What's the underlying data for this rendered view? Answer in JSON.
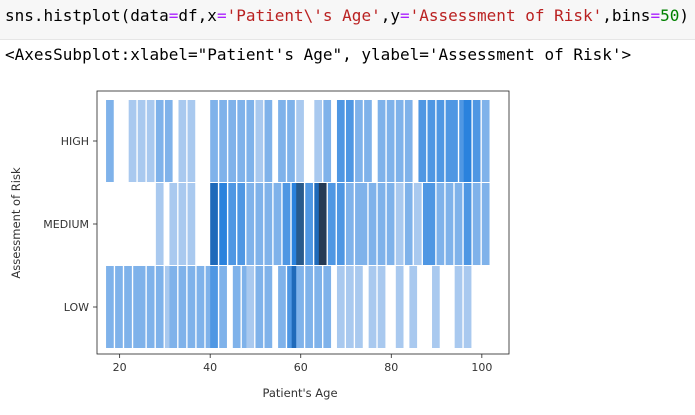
{
  "code_cell": {
    "parts": [
      {
        "text": "sns.histplot(data",
        "kind": "plain"
      },
      {
        "text": "=",
        "kind": "eq"
      },
      {
        "text": "df,x",
        "kind": "plain"
      },
      {
        "text": "=",
        "kind": "eq"
      },
      {
        "text": "'Patient\\'s Age'",
        "kind": "str"
      },
      {
        "text": ",y",
        "kind": "plain"
      },
      {
        "text": "=",
        "kind": "eq"
      },
      {
        "text": "'Assessment of Risk'",
        "kind": "str"
      },
      {
        "text": ",bins",
        "kind": "plain"
      },
      {
        "text": "=",
        "kind": "eq"
      },
      {
        "text": "50",
        "kind": "num"
      },
      {
        "text": ")",
        "kind": "plain"
      }
    ]
  },
  "output": {
    "text": "<AxesSubplot:xlabel=\"Patient's Age\", ylabel='Assessment of Risk'>"
  },
  "chart_data": {
    "type": "heatmap",
    "xlabel": "Patient's Age",
    "ylabel": "Assessment of Risk",
    "xticks": [
      20,
      40,
      60,
      80,
      100
    ],
    "xlim": [
      15,
      106
    ],
    "categories": [
      "HIGH",
      "MEDIUM",
      "LOW"
    ],
    "bin_width": 1.7,
    "color": "#1f77b4",
    "series": [
      {
        "category": "HIGH",
        "cells": [
          [
            17,
            2
          ],
          [
            22,
            1
          ],
          [
            24,
            1
          ],
          [
            26,
            1
          ],
          [
            28,
            2
          ],
          [
            30,
            2
          ],
          [
            33,
            1
          ],
          [
            35,
            1
          ],
          [
            40,
            2
          ],
          [
            42,
            2
          ],
          [
            44,
            2
          ],
          [
            46,
            2
          ],
          [
            48,
            2
          ],
          [
            50,
            1
          ],
          [
            52,
            2
          ],
          [
            55,
            2
          ],
          [
            57,
            2
          ],
          [
            59,
            1
          ],
          [
            63,
            1
          ],
          [
            65,
            2
          ],
          [
            68,
            3
          ],
          [
            70,
            3
          ],
          [
            72,
            2
          ],
          [
            74,
            2
          ],
          [
            77,
            2
          ],
          [
            79,
            2
          ],
          [
            81,
            2
          ],
          [
            83,
            2
          ],
          [
            86,
            3
          ],
          [
            88,
            3
          ],
          [
            90,
            3
          ],
          [
            92,
            3
          ],
          [
            93,
            3
          ],
          [
            95,
            3
          ],
          [
            96,
            4
          ],
          [
            98,
            3
          ],
          [
            100,
            2
          ]
        ]
      },
      {
        "category": "MEDIUM",
        "cells": [
          [
            28,
            1
          ],
          [
            31,
            1
          ],
          [
            33,
            1
          ],
          [
            35,
            1
          ],
          [
            40,
            5
          ],
          [
            42,
            4
          ],
          [
            44,
            3
          ],
          [
            46,
            3
          ],
          [
            48,
            2
          ],
          [
            50,
            2
          ],
          [
            52,
            2
          ],
          [
            54,
            2
          ],
          [
            56,
            3
          ],
          [
            58,
            4
          ],
          [
            59,
            6
          ],
          [
            61,
            3
          ],
          [
            63,
            5
          ],
          [
            64,
            7
          ],
          [
            66,
            3
          ],
          [
            68,
            3
          ],
          [
            70,
            2
          ],
          [
            72,
            2
          ],
          [
            73,
            2
          ],
          [
            75,
            2
          ],
          [
            77,
            2
          ],
          [
            79,
            2
          ],
          [
            81,
            1
          ],
          [
            83,
            2
          ],
          [
            85,
            1
          ],
          [
            87,
            3
          ],
          [
            88,
            3
          ],
          [
            90,
            2
          ],
          [
            92,
            2
          ],
          [
            94,
            2
          ],
          [
            96,
            3
          ],
          [
            98,
            2
          ],
          [
            100,
            2
          ]
        ]
      },
      {
        "category": "LOW",
        "cells": [
          [
            17,
            2
          ],
          [
            19,
            2
          ],
          [
            21,
            2
          ],
          [
            23,
            2
          ],
          [
            24,
            2
          ],
          [
            26,
            2
          ],
          [
            28,
            2
          ],
          [
            30,
            1
          ],
          [
            31,
            2
          ],
          [
            33,
            2
          ],
          [
            35,
            2
          ],
          [
            37,
            2
          ],
          [
            39,
            2
          ],
          [
            40,
            3
          ],
          [
            42,
            2
          ],
          [
            45,
            2
          ],
          [
            47,
            2
          ],
          [
            48,
            1
          ],
          [
            50,
            2
          ],
          [
            52,
            2
          ],
          [
            55,
            2
          ],
          [
            57,
            3
          ],
          [
            58,
            5
          ],
          [
            59,
            2
          ],
          [
            61,
            2
          ],
          [
            63,
            2
          ],
          [
            65,
            2
          ],
          [
            68,
            1
          ],
          [
            70,
            1
          ],
          [
            72,
            1
          ],
          [
            75,
            1
          ],
          [
            77,
            1
          ],
          [
            81,
            1
          ],
          [
            84,
            1
          ],
          [
            89,
            1
          ],
          [
            94,
            1
          ],
          [
            96,
            1
          ]
        ]
      }
    ]
  }
}
